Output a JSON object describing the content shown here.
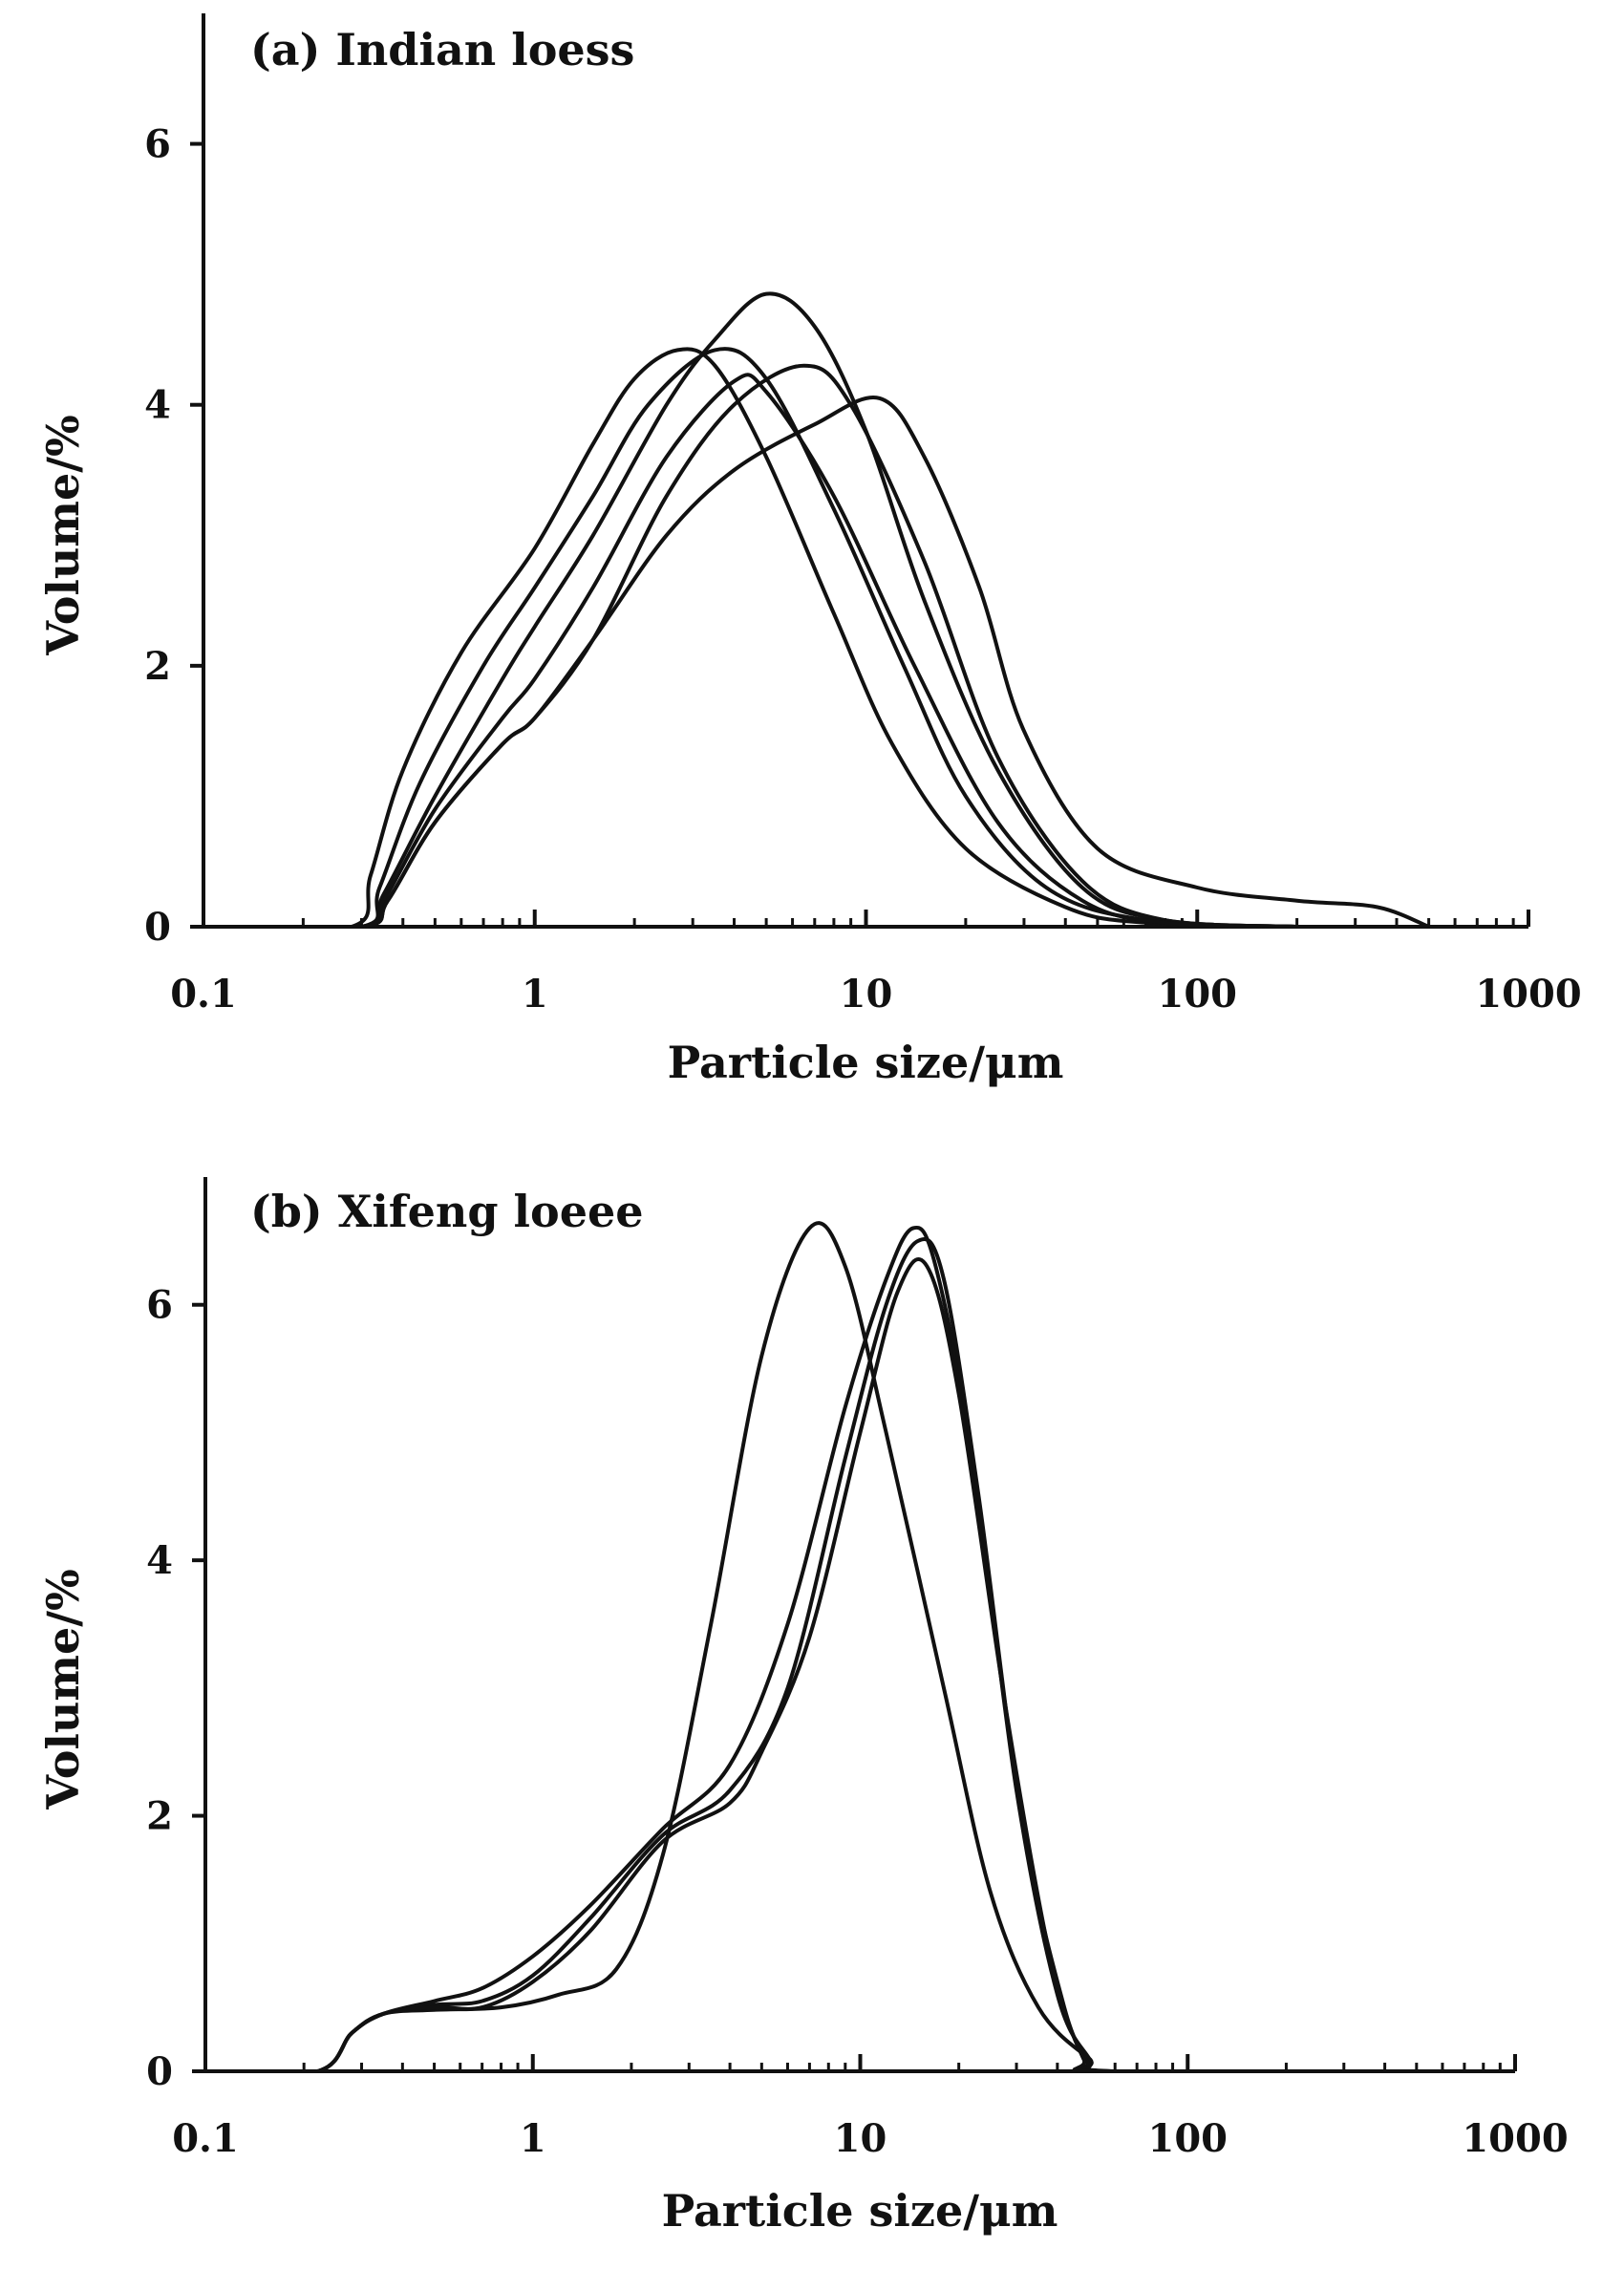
{
  "chart_data": [
    {
      "type": "line",
      "title": "(a) Indian loess",
      "xlabel": "Particle size/μm",
      "ylabel": "Volume/%",
      "x_scale": "log",
      "xlim": [
        0.1,
        1000
      ],
      "ylim": [
        0,
        7
      ],
      "x_ticks": [
        0.1,
        1,
        10,
        100,
        1000
      ],
      "x_tick_labels": [
        "0.1",
        "1",
        "10",
        "100",
        "1000"
      ],
      "y_ticks": [
        0,
        2,
        4,
        6
      ],
      "y_tick_labels": [
        "0",
        "2",
        "4",
        "6"
      ],
      "grid": false,
      "legend": "none",
      "series": [
        {
          "name": "curve-1",
          "points": [
            [
              0.1,
              0
            ],
            [
              0.28,
              0
            ],
            [
              0.32,
              0.4
            ],
            [
              0.4,
              1.2
            ],
            [
              0.6,
              2.1
            ],
            [
              1,
              2.9
            ],
            [
              1.5,
              3.7
            ],
            [
              2,
              4.2
            ],
            [
              2.7,
              4.42
            ],
            [
              3.5,
              4.3
            ],
            [
              5,
              3.6
            ],
            [
              8,
              2.4
            ],
            [
              12,
              1.4
            ],
            [
              20,
              0.6
            ],
            [
              40,
              0.15
            ],
            [
              70,
              0.03
            ],
            [
              200,
              0
            ]
          ]
        },
        {
          "name": "curve-2",
          "points": [
            [
              0.1,
              0
            ],
            [
              0.3,
              0
            ],
            [
              0.34,
              0.3
            ],
            [
              0.45,
              1.1
            ],
            [
              0.7,
              2.0
            ],
            [
              1,
              2.6
            ],
            [
              1.5,
              3.3
            ],
            [
              2.2,
              4.0
            ],
            [
              3.5,
              4.42
            ],
            [
              5,
              4.2
            ],
            [
              8,
              3.2
            ],
            [
              13,
              2.0
            ],
            [
              20,
              1.0
            ],
            [
              35,
              0.3
            ],
            [
              70,
              0.05
            ],
            [
              200,
              0
            ]
          ]
        },
        {
          "name": "curve-3",
          "points": [
            [
              0.1,
              0
            ],
            [
              0.3,
              0
            ],
            [
              0.35,
              0.25
            ],
            [
              0.5,
              1.0
            ],
            [
              0.8,
              1.9
            ],
            [
              1,
              2.3
            ],
            [
              1.5,
              3.0
            ],
            [
              2.5,
              4.0
            ],
            [
              3.5,
              4.5
            ],
            [
              5,
              4.85
            ],
            [
              7,
              4.6
            ],
            [
              10,
              3.8
            ],
            [
              15,
              2.5
            ],
            [
              25,
              1.2
            ],
            [
              45,
              0.3
            ],
            [
              80,
              0.05
            ],
            [
              200,
              0
            ]
          ]
        },
        {
          "name": "curve-4",
          "points": [
            [
              0.1,
              0
            ],
            [
              0.3,
              0
            ],
            [
              0.36,
              0.2
            ],
            [
              0.5,
              0.8
            ],
            [
              0.8,
              1.4
            ],
            [
              1,
              1.6
            ],
            [
              1.5,
              2.2
            ],
            [
              2.5,
              3.3
            ],
            [
              4,
              4.0
            ],
            [
              6.5,
              4.3
            ],
            [
              9,
              4.0
            ],
            [
              15,
              2.8
            ],
            [
              25,
              1.3
            ],
            [
              45,
              0.35
            ],
            [
              80,
              0.05
            ],
            [
              200,
              0
            ]
          ]
        },
        {
          "name": "curve-5",
          "points": [
            [
              0.1,
              0
            ],
            [
              0.3,
              0
            ],
            [
              0.35,
              0.2
            ],
            [
              0.5,
              0.9
            ],
            [
              0.8,
              1.6
            ],
            [
              1,
              1.9
            ],
            [
              1.5,
              2.6
            ],
            [
              2.5,
              3.6
            ],
            [
              4,
              4.18
            ],
            [
              5,
              4.1
            ],
            [
              8,
              3.3
            ],
            [
              14,
              2.0
            ],
            [
              25,
              0.8
            ],
            [
              45,
              0.2
            ],
            [
              80,
              0.03
            ],
            [
              200,
              0
            ]
          ]
        },
        {
          "name": "curve-6",
          "points": [
            [
              0.1,
              0
            ],
            [
              0.3,
              0
            ],
            [
              0.36,
              0.2
            ],
            [
              0.5,
              0.8
            ],
            [
              0.8,
              1.4
            ],
            [
              1,
              1.6
            ],
            [
              1.5,
              2.2
            ],
            [
              2.5,
              3.0
            ],
            [
              4,
              3.5
            ],
            [
              7,
              3.85
            ],
            [
              11,
              4.05
            ],
            [
              15,
              3.6
            ],
            [
              22,
              2.6
            ],
            [
              30,
              1.5
            ],
            [
              50,
              0.6
            ],
            [
              100,
              0.3
            ],
            [
              200,
              0.2
            ],
            [
              350,
              0.15
            ],
            [
              500,
              0
            ]
          ]
        }
      ]
    },
    {
      "type": "line",
      "title": "(b) Xifeng loeee",
      "xlabel": "Particle size/μm",
      "ylabel": "Volume/%",
      "x_scale": "log",
      "xlim": [
        0.1,
        1000
      ],
      "ylim": [
        0,
        7
      ],
      "x_ticks": [
        0.1,
        1,
        10,
        100,
        1000
      ],
      "x_tick_labels": [
        "0.1",
        "1",
        "10",
        "100",
        "1000"
      ],
      "y_ticks": [
        0,
        2,
        4,
        6
      ],
      "y_tick_labels": [
        "0",
        "2",
        "4",
        "6"
      ],
      "grid": false,
      "legend": "none",
      "series": [
        {
          "name": "curve-1",
          "points": [
            [
              0.1,
              0
            ],
            [
              0.22,
              0
            ],
            [
              0.28,
              0.3
            ],
            [
              0.35,
              0.45
            ],
            [
              0.5,
              0.48
            ],
            [
              0.8,
              0.5
            ],
            [
              1.2,
              0.6
            ],
            [
              1.8,
              0.8
            ],
            [
              2.5,
              1.7
            ],
            [
              3.5,
              3.5
            ],
            [
              5,
              5.6
            ],
            [
              7,
              6.6
            ],
            [
              9,
              6.3
            ],
            [
              12,
              5.0
            ],
            [
              18,
              3.0
            ],
            [
              25,
              1.4
            ],
            [
              35,
              0.5
            ],
            [
              50,
              0.1
            ],
            [
              60,
              0
            ],
            [
              500,
              0
            ]
          ]
        },
        {
          "name": "curve-2",
          "points": [
            [
              0.1,
              0
            ],
            [
              0.22,
              0
            ],
            [
              0.28,
              0.3
            ],
            [
              0.35,
              0.45
            ],
            [
              0.5,
              0.55
            ],
            [
              0.7,
              0.65
            ],
            [
              1,
              0.9
            ],
            [
              1.5,
              1.3
            ],
            [
              2.5,
              1.9
            ],
            [
              4,
              2.4
            ],
            [
              6,
              3.5
            ],
            [
              9,
              5.2
            ],
            [
              12,
              6.2
            ],
            [
              14.5,
              6.6
            ],
            [
              17,
              6.3
            ],
            [
              22,
              4.8
            ],
            [
              30,
              2.2
            ],
            [
              40,
              0.6
            ],
            [
              50,
              0.1
            ],
            [
              55,
              0
            ],
            [
              500,
              0
            ]
          ]
        },
        {
          "name": "curve-3",
          "points": [
            [
              0.1,
              0
            ],
            [
              0.22,
              0
            ],
            [
              0.28,
              0.3
            ],
            [
              0.35,
              0.45
            ],
            [
              0.5,
              0.52
            ],
            [
              0.7,
              0.55
            ],
            [
              1,
              0.75
            ],
            [
              1.5,
              1.2
            ],
            [
              2.5,
              1.85
            ],
            [
              4,
              2.2
            ],
            [
              6,
              3.0
            ],
            [
              9,
              4.8
            ],
            [
              12,
              6.0
            ],
            [
              15,
              6.5
            ],
            [
              18,
              6.2
            ],
            [
              23,
              4.5
            ],
            [
              31,
              2.0
            ],
            [
              42,
              0.5
            ],
            [
              50,
              0.05
            ],
            [
              55,
              0
            ],
            [
              500,
              0
            ]
          ]
        },
        {
          "name": "curve-4",
          "points": [
            [
              0.1,
              0
            ],
            [
              0.22,
              0
            ],
            [
              0.28,
              0.3
            ],
            [
              0.35,
              0.45
            ],
            [
              0.5,
              0.5
            ],
            [
              0.7,
              0.5
            ],
            [
              1,
              0.7
            ],
            [
              1.5,
              1.1
            ],
            [
              2.5,
              1.8
            ],
            [
              4,
              2.1
            ],
            [
              5,
              2.5
            ],
            [
              7,
              3.4
            ],
            [
              10,
              5.0
            ],
            [
              13,
              6.1
            ],
            [
              16,
              6.3
            ],
            [
              20,
              5.3
            ],
            [
              28,
              2.8
            ],
            [
              38,
              0.9
            ],
            [
              48,
              0.1
            ],
            [
              55,
              0
            ],
            [
              500,
              0
            ]
          ]
        }
      ]
    }
  ]
}
